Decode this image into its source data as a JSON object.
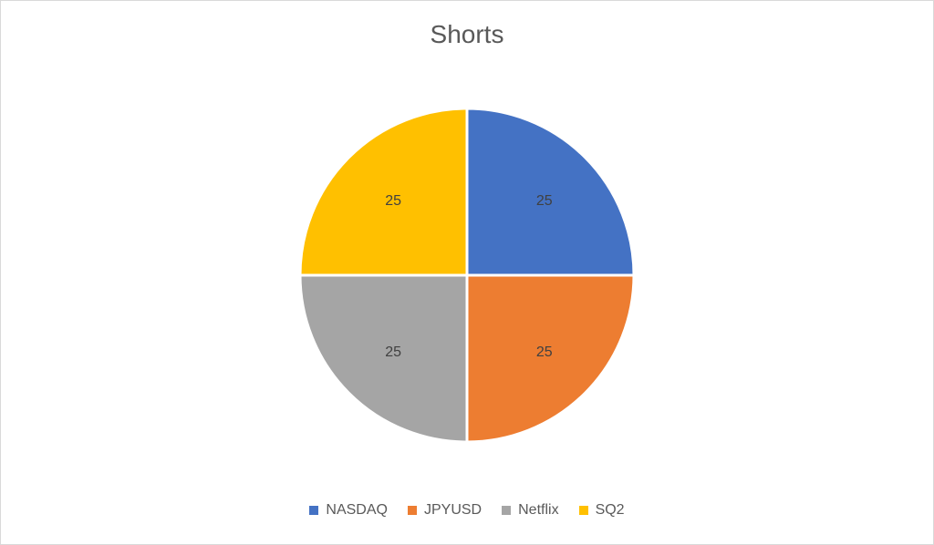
{
  "chart_data": {
    "type": "pie",
    "title": "Shorts",
    "categories": [
      "NASDAQ",
      "JPYUSD",
      "Netflix",
      "SQ2"
    ],
    "values": [
      25,
      25,
      25,
      25
    ],
    "colors": [
      "#4472C4",
      "#ED7D31",
      "#A5A5A5",
      "#FFC000"
    ],
    "data_labels": [
      "25",
      "25",
      "25",
      "25"
    ],
    "legend_position": "bottom"
  }
}
